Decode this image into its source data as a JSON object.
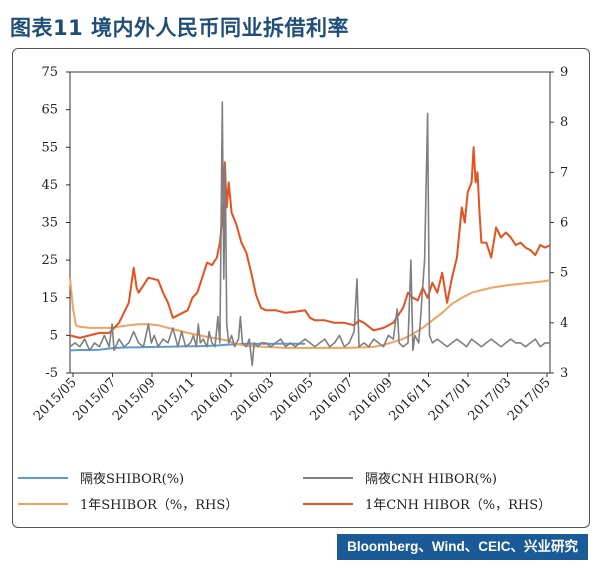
{
  "title": "图表11  境内外人民币同业拆借利率",
  "source": "Bloomberg、Wind、CEIC、兴业研究",
  "colors": {
    "shibor_on": "#5b9bd5",
    "cnh_on": "#7f7f7f",
    "shibor_1y": "#f0a35e",
    "cnh_1y": "#e8501e"
  },
  "chart_data": {
    "type": "line",
    "x_tick_labels": [
      "2015/05",
      "2015/07",
      "2015/09",
      "2015/11",
      "2016/01",
      "2016/03",
      "2016/05",
      "2016/07",
      "2016/09",
      "2016/11",
      "2017/01",
      "2017/03",
      "2017/05"
    ],
    "x_start": "2015/05",
    "x_end": "2017/06",
    "y_left": {
      "ticks": [
        "-5",
        "5",
        "15",
        "25",
        "35",
        "45",
        "55",
        "65",
        "75"
      ],
      "ylim": [
        -5,
        75
      ]
    },
    "y_right": {
      "ticks": [
        "3",
        "4",
        "5",
        "6",
        "7",
        "8",
        "9"
      ],
      "ylim": [
        3,
        9
      ]
    },
    "legend": {
      "position": "bottom"
    },
    "series": [
      {
        "name": "隔夜SHIBOR(%)",
        "axis": "left",
        "color": "#5b9bd5",
        "points": [
          [
            0,
            1.0
          ],
          [
            1,
            1.1
          ],
          [
            2,
            1.1
          ],
          [
            3,
            1.2
          ],
          [
            4,
            1.5
          ],
          [
            5,
            1.7
          ],
          [
            6,
            1.8
          ],
          [
            7,
            1.8
          ],
          [
            8,
            1.9
          ],
          [
            9,
            1.95
          ],
          [
            10,
            2.0
          ],
          [
            11,
            2.05
          ],
          [
            12,
            2.1
          ],
          [
            13,
            2.1
          ],
          [
            14,
            2.2
          ],
          [
            15,
            2.3
          ],
          [
            16,
            2.5
          ],
          [
            17,
            2.65
          ],
          [
            18,
            2.8
          ],
          [
            19,
            2.8
          ],
          [
            20,
            2.8
          ],
          [
            21,
            2.8
          ],
          [
            22,
            2.75
          ],
          [
            24,
            2.8
          ]
        ]
      },
      {
        "name": "隔夜CNH HIBOR(%)",
        "axis": "left",
        "color": "#7f7f7f",
        "points": [
          [
            0,
            2
          ],
          [
            0.5,
            3
          ],
          [
            1,
            2
          ],
          [
            1.5,
            4
          ],
          [
            2,
            1
          ],
          [
            2.5,
            3
          ],
          [
            3,
            2
          ],
          [
            3.5,
            5
          ],
          [
            4,
            2
          ],
          [
            4.3,
            8
          ],
          [
            4.5,
            1
          ],
          [
            5,
            4
          ],
          [
            5.5,
            2
          ],
          [
            6,
            3
          ],
          [
            6.5,
            6
          ],
          [
            7,
            3
          ],
          [
            7.5,
            2
          ],
          [
            8,
            8
          ],
          [
            8.3,
            3
          ],
          [
            8.6,
            5
          ],
          [
            9,
            2
          ],
          [
            9.5,
            4
          ],
          [
            10,
            3
          ],
          [
            10.5,
            7
          ],
          [
            11,
            2
          ],
          [
            11.4,
            6
          ],
          [
            11.8,
            2
          ],
          [
            12.3,
            3
          ],
          [
            12.6,
            5
          ],
          [
            12.9,
            2
          ],
          [
            13.1,
            8
          ],
          [
            13.3,
            3
          ],
          [
            13.6,
            4
          ],
          [
            14,
            2
          ],
          [
            14.2,
            6
          ],
          [
            14.5,
            3
          ],
          [
            14.8,
            2
          ],
          [
            15.1,
            10
          ],
          [
            15.3,
            3
          ],
          [
            15.55,
            67
          ],
          [
            15.7,
            20
          ],
          [
            15.85,
            50
          ],
          [
            16.0,
            8
          ],
          [
            16.2,
            3
          ],
          [
            16.5,
            5
          ],
          [
            16.8,
            2
          ],
          [
            17.2,
            4
          ],
          [
            17.4,
            10
          ],
          [
            17.6,
            3
          ],
          [
            18,
            2
          ],
          [
            18.3,
            4
          ],
          [
            18.6,
            -3
          ],
          [
            18.8,
            3
          ],
          [
            19.2,
            2
          ],
          [
            19.5,
            3
          ],
          [
            20,
            3
          ],
          [
            20.5,
            2
          ],
          [
            21,
            3
          ],
          [
            21.5,
            4
          ],
          [
            22,
            2
          ],
          [
            22.5,
            3
          ],
          [
            23,
            2
          ],
          [
            23.5,
            3
          ],
          [
            24,
            4
          ],
          [
            24.5,
            3
          ],
          [
            25,
            2
          ],
          [
            25.5,
            3
          ],
          [
            26,
            4
          ],
          [
            26.5,
            2
          ],
          [
            27,
            3
          ],
          [
            27.5,
            5
          ],
          [
            28,
            2
          ],
          [
            28.5,
            3
          ],
          [
            29,
            6
          ],
          [
            29.3,
            20
          ],
          [
            29.5,
            2
          ],
          [
            30,
            3
          ],
          [
            30.5,
            2
          ],
          [
            31,
            4
          ],
          [
            31.5,
            3
          ],
          [
            32,
            2
          ],
          [
            32.5,
            5
          ],
          [
            33,
            4
          ],
          [
            33.4,
            12
          ],
          [
            33.6,
            3
          ],
          [
            34,
            2
          ],
          [
            34.5,
            3
          ],
          [
            34.8,
            25
          ],
          [
            35,
            1
          ],
          [
            35.2,
            5
          ],
          [
            35.6,
            3
          ],
          [
            35.8,
            10
          ],
          [
            36,
            18
          ],
          [
            36.2,
            25
          ],
          [
            36.5,
            64
          ],
          [
            36.7,
            5
          ],
          [
            37,
            3
          ],
          [
            37.5,
            4
          ],
          [
            38,
            3
          ],
          [
            38.5,
            2
          ],
          [
            39,
            3
          ],
          [
            39.5,
            4
          ],
          [
            40,
            3
          ],
          [
            40.5,
            2
          ],
          [
            41,
            4
          ],
          [
            41.5,
            3
          ],
          [
            42,
            2
          ],
          [
            42.5,
            3
          ],
          [
            43,
            4
          ],
          [
            43.5,
            3
          ],
          [
            44,
            2
          ],
          [
            44.5,
            3
          ],
          [
            45,
            4
          ],
          [
            45.5,
            3
          ],
          [
            46,
            3
          ],
          [
            46.5,
            2
          ],
          [
            47,
            3
          ],
          [
            47.5,
            4
          ],
          [
            48,
            2
          ],
          [
            48.5,
            3
          ],
          [
            49,
            3
          ]
        ]
      },
      {
        "name": "1年SHIBOR（%，RHS）",
        "axis": "right",
        "color": "#f0a35e",
        "points": [
          [
            0,
            4.9
          ],
          [
            0.3,
            4.3
          ],
          [
            0.6,
            3.95
          ],
          [
            1,
            3.92
          ],
          [
            2,
            3.9
          ],
          [
            3,
            3.9
          ],
          [
            4,
            3.9
          ],
          [
            5,
            3.92
          ],
          [
            6,
            3.95
          ],
          [
            7,
            3.97
          ],
          [
            8,
            3.97
          ],
          [
            9,
            3.95
          ],
          [
            10,
            3.9
          ],
          [
            12,
            3.8
          ],
          [
            14,
            3.72
          ],
          [
            16,
            3.65
          ],
          [
            17,
            3.58
          ],
          [
            18,
            3.54
          ],
          [
            20,
            3.52
          ],
          [
            22,
            3.5
          ],
          [
            24,
            3.5
          ],
          [
            26,
            3.5
          ],
          [
            28,
            3.5
          ],
          [
            30,
            3.51
          ],
          [
            31,
            3.52
          ],
          [
            32,
            3.56
          ],
          [
            33,
            3.62
          ],
          [
            34,
            3.68
          ],
          [
            35,
            3.78
          ],
          [
            36,
            3.9
          ],
          [
            37,
            4.05
          ],
          [
            38,
            4.2
          ],
          [
            39,
            4.38
          ],
          [
            40,
            4.5
          ],
          [
            41,
            4.6
          ],
          [
            42,
            4.65
          ],
          [
            43,
            4.7
          ],
          [
            44,
            4.73
          ],
          [
            45,
            4.76
          ],
          [
            46,
            4.78
          ],
          [
            47,
            4.8
          ],
          [
            48,
            4.82
          ],
          [
            49,
            4.85
          ]
        ]
      },
      {
        "name": "1年CNH HIBOR（%，RHS）",
        "axis": "right",
        "color": "#e8501e",
        "points": [
          [
            0,
            3.75
          ],
          [
            1,
            3.7
          ],
          [
            2,
            3.75
          ],
          [
            3,
            3.8
          ],
          [
            4,
            3.8
          ],
          [
            4.5,
            3.9
          ],
          [
            5,
            4.0
          ],
          [
            5.5,
            4.2
          ],
          [
            6,
            4.4
          ],
          [
            6.5,
            5.1
          ],
          [
            6.8,
            4.7
          ],
          [
            7,
            4.6
          ],
          [
            8,
            4.9
          ],
          [
            9,
            4.85
          ],
          [
            9.5,
            4.6
          ],
          [
            10,
            4.4
          ],
          [
            10.5,
            4.1
          ],
          [
            11,
            4.15
          ],
          [
            12,
            4.25
          ],
          [
            12.5,
            4.5
          ],
          [
            13,
            4.6
          ],
          [
            13.5,
            4.9
          ],
          [
            14,
            5.2
          ],
          [
            14.5,
            5.15
          ],
          [
            15,
            5.3
          ],
          [
            15.3,
            5.6
          ],
          [
            15.6,
            6.2
          ],
          [
            15.8,
            7.2
          ],
          [
            16,
            6.3
          ],
          [
            16.2,
            6.8
          ],
          [
            16.5,
            6.2
          ],
          [
            17,
            5.95
          ],
          [
            17.5,
            5.6
          ],
          [
            18,
            5.4
          ],
          [
            18.5,
            5.0
          ],
          [
            19,
            4.55
          ],
          [
            19.5,
            4.3
          ],
          [
            20,
            4.25
          ],
          [
            21,
            4.25
          ],
          [
            22,
            4.2
          ],
          [
            23,
            4.22
          ],
          [
            24,
            4.25
          ],
          [
            24.5,
            4.1
          ],
          [
            25,
            4.05
          ],
          [
            26,
            4.05
          ],
          [
            27,
            4.0
          ],
          [
            28,
            4.0
          ],
          [
            29,
            3.95
          ],
          [
            29.5,
            4.05
          ],
          [
            30,
            4.0
          ],
          [
            31,
            3.85
          ],
          [
            32,
            3.9
          ],
          [
            33,
            4.0
          ],
          [
            34,
            4.3
          ],
          [
            34.5,
            4.6
          ],
          [
            35,
            4.5
          ],
          [
            35.5,
            4.45
          ],
          [
            36,
            4.7
          ],
          [
            36.5,
            4.5
          ],
          [
            37,
            4.8
          ],
          [
            37.5,
            4.6
          ],
          [
            38,
            5.0
          ],
          [
            38.5,
            4.4
          ],
          [
            39,
            4.9
          ],
          [
            39.5,
            5.3
          ],
          [
            40,
            6.3
          ],
          [
            40.3,
            6.0
          ],
          [
            40.6,
            6.6
          ],
          [
            41,
            6.8
          ],
          [
            41.2,
            7.5
          ],
          [
            41.4,
            6.8
          ],
          [
            41.6,
            7.0
          ],
          [
            41.8,
            6.2
          ],
          [
            42,
            5.6
          ],
          [
            42.5,
            5.6
          ],
          [
            43,
            5.3
          ],
          [
            43.5,
            5.9
          ],
          [
            44,
            5.7
          ],
          [
            44.5,
            5.8
          ],
          [
            45,
            5.7
          ],
          [
            45.5,
            5.55
          ],
          [
            46,
            5.6
          ],
          [
            46.5,
            5.5
          ],
          [
            47,
            5.45
          ],
          [
            47.5,
            5.35
          ],
          [
            48,
            5.55
          ],
          [
            48.5,
            5.5
          ],
          [
            49,
            5.55
          ]
        ]
      }
    ]
  }
}
